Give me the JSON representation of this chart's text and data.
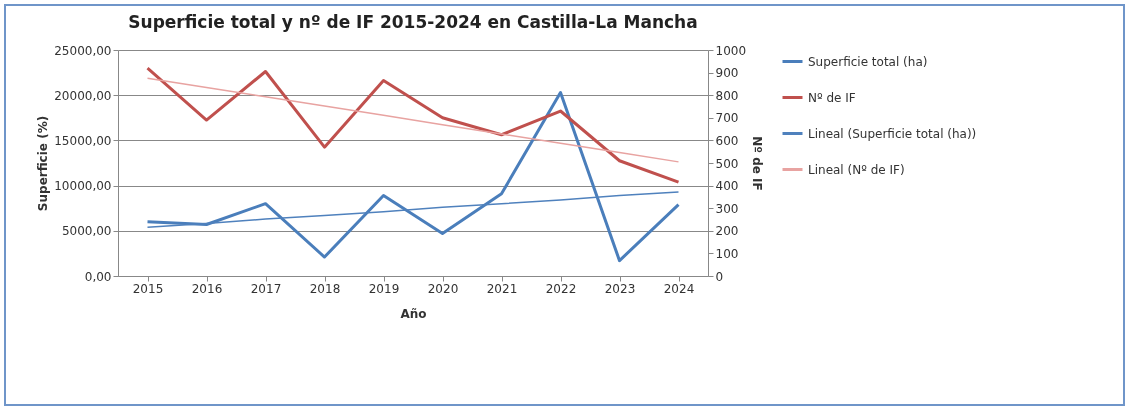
{
  "chart_data": {
    "type": "line",
    "title": "Superficie total y nº de IF 2015-2024 en Castilla-La Mancha",
    "xlabel": "Año",
    "ylabel": "Superficie (%)",
    "y2label": "Nº de IF",
    "categories": [
      "2015",
      "2016",
      "2017",
      "2018",
      "2019",
      "2020",
      "2021",
      "2022",
      "2023",
      "2024"
    ],
    "series": [
      {
        "name": "Superficie total (ha)",
        "color": "#4a7ebb",
        "values": [
          6000,
          5700,
          8000,
          2100,
          8900,
          4700,
          9100,
          20300,
          1700,
          7900
        ]
      },
      {
        "name": "Nº de IF",
        "color": "#c0504d",
        "axis": "y2",
        "values": [
          920,
          690,
          905,
          570,
          865,
          700,
          625,
          730,
          510,
          415
        ]
      },
      {
        "name": "Lineal (Superficie total (ha))",
        "color": "#4f81bd",
        "values": [
          5400,
          5800,
          6300,
          6700,
          7100,
          7600,
          8000,
          8400,
          8900,
          9300
        ]
      },
      {
        "name": "Lineal (Nº de IF)",
        "color": "#e8a3a1",
        "axis": "y2",
        "values": [
          875,
          834,
          793,
          752,
          711,
          669,
          628,
          587,
          546,
          505
        ]
      }
    ],
    "ylim": [
      0,
      25000
    ],
    "yticks": [
      {
        "value": 0,
        "label": "0,00"
      },
      {
        "value": 5000,
        "label": "5000,00"
      },
      {
        "value": 10000,
        "label": "10000,00"
      },
      {
        "value": 15000,
        "label": "15000,00"
      },
      {
        "value": 20000,
        "label": "20000,00"
      },
      {
        "value": 25000,
        "label": "25000,00"
      }
    ],
    "y2lim": [
      0,
      1000
    ],
    "y2ticks": [
      0,
      100,
      200,
      300,
      400,
      500,
      600,
      700,
      800,
      900,
      1000
    ],
    "grid": "y",
    "legend": "right",
    "marker": "none",
    "line_style": "solid"
  }
}
